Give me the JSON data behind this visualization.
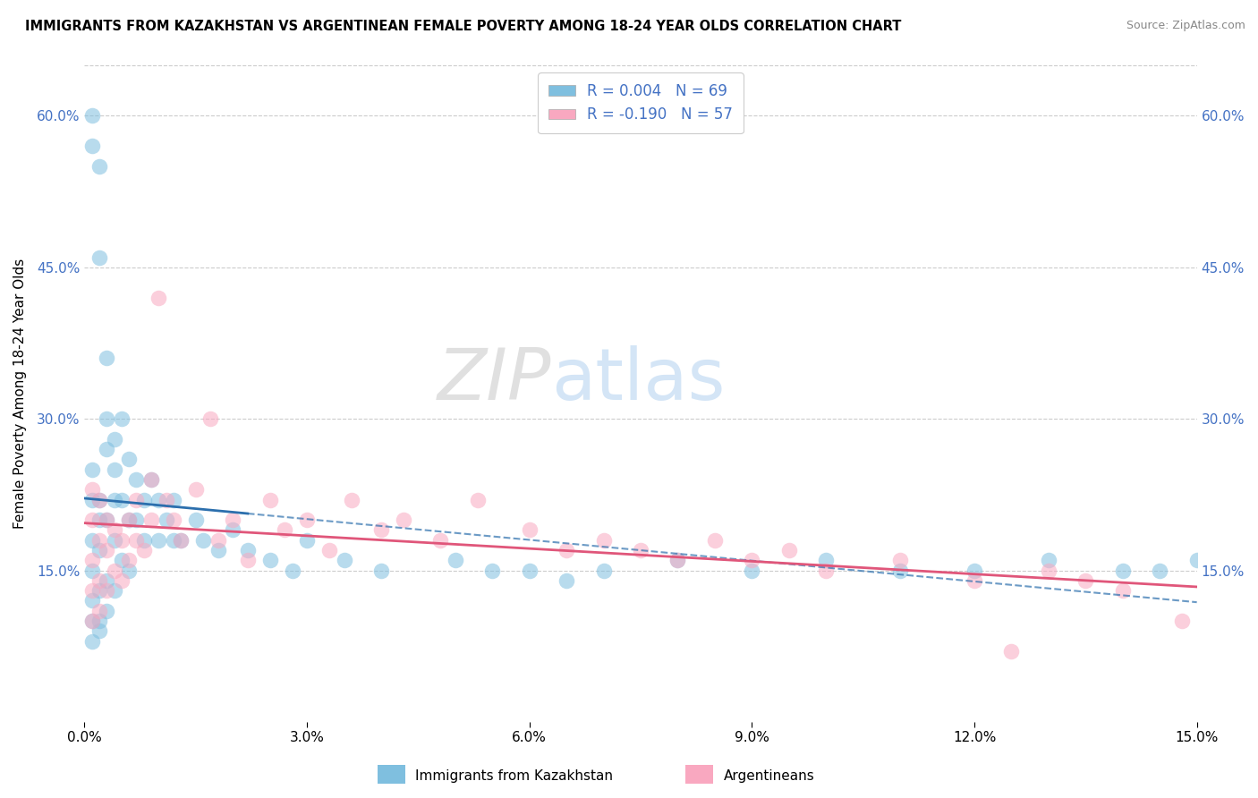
{
  "title": "IMMIGRANTS FROM KAZAKHSTAN VS ARGENTINEAN FEMALE POVERTY AMONG 18-24 YEAR OLDS CORRELATION CHART",
  "source": "Source: ZipAtlas.com",
  "ylabel": "Female Poverty Among 18-24 Year Olds",
  "xlim": [
    0.0,
    0.15
  ],
  "ylim": [
    0.0,
    0.65
  ],
  "color_blue": "#7fbfdf",
  "color_pink": "#f9a8c0",
  "line_blue": "#2c6fad",
  "line_pink": "#e0567a",
  "watermark_zip": "ZIP",
  "watermark_atlas": "atlas",
  "background": "#ffffff",
  "grid_color": "#cccccc",
  "kazakhstan_x": [
    0.001,
    0.001,
    0.001,
    0.001,
    0.001,
    0.001,
    0.001,
    0.001,
    0.001,
    0.002,
    0.002,
    0.002,
    0.002,
    0.002,
    0.002,
    0.002,
    0.002,
    0.003,
    0.003,
    0.003,
    0.003,
    0.003,
    0.003,
    0.004,
    0.004,
    0.004,
    0.004,
    0.004,
    0.005,
    0.005,
    0.005,
    0.006,
    0.006,
    0.006,
    0.007,
    0.007,
    0.008,
    0.008,
    0.009,
    0.01,
    0.01,
    0.011,
    0.012,
    0.012,
    0.013,
    0.015,
    0.016,
    0.018,
    0.02,
    0.022,
    0.025,
    0.028,
    0.03,
    0.035,
    0.04,
    0.05,
    0.055,
    0.06,
    0.065,
    0.07,
    0.08,
    0.09,
    0.1,
    0.11,
    0.12,
    0.13,
    0.14,
    0.145,
    0.15
  ],
  "kazakhstan_y": [
    0.57,
    0.6,
    0.22,
    0.18,
    0.15,
    0.12,
    0.1,
    0.08,
    0.25,
    0.55,
    0.46,
    0.2,
    0.17,
    0.13,
    0.1,
    0.09,
    0.22,
    0.36,
    0.3,
    0.27,
    0.2,
    0.14,
    0.11,
    0.28,
    0.25,
    0.22,
    0.18,
    0.13,
    0.3,
    0.22,
    0.16,
    0.26,
    0.2,
    0.15,
    0.24,
    0.2,
    0.22,
    0.18,
    0.24,
    0.22,
    0.18,
    0.2,
    0.22,
    0.18,
    0.18,
    0.2,
    0.18,
    0.17,
    0.19,
    0.17,
    0.16,
    0.15,
    0.18,
    0.16,
    0.15,
    0.16,
    0.15,
    0.15,
    0.14,
    0.15,
    0.16,
    0.15,
    0.16,
    0.15,
    0.15,
    0.16,
    0.15,
    0.15,
    0.16
  ],
  "argentina_x": [
    0.001,
    0.001,
    0.001,
    0.001,
    0.001,
    0.002,
    0.002,
    0.002,
    0.002,
    0.003,
    0.003,
    0.003,
    0.004,
    0.004,
    0.005,
    0.005,
    0.006,
    0.006,
    0.007,
    0.007,
    0.008,
    0.009,
    0.009,
    0.01,
    0.011,
    0.012,
    0.013,
    0.015,
    0.017,
    0.018,
    0.02,
    0.022,
    0.025,
    0.027,
    0.03,
    0.033,
    0.036,
    0.04,
    0.043,
    0.048,
    0.053,
    0.06,
    0.065,
    0.07,
    0.075,
    0.08,
    0.085,
    0.09,
    0.095,
    0.1,
    0.11,
    0.12,
    0.125,
    0.13,
    0.135,
    0.14,
    0.148
  ],
  "argentina_y": [
    0.23,
    0.2,
    0.16,
    0.13,
    0.1,
    0.22,
    0.18,
    0.14,
    0.11,
    0.2,
    0.17,
    0.13,
    0.19,
    0.15,
    0.18,
    0.14,
    0.2,
    0.16,
    0.22,
    0.18,
    0.17,
    0.24,
    0.2,
    0.42,
    0.22,
    0.2,
    0.18,
    0.23,
    0.3,
    0.18,
    0.2,
    0.16,
    0.22,
    0.19,
    0.2,
    0.17,
    0.22,
    0.19,
    0.2,
    0.18,
    0.22,
    0.19,
    0.17,
    0.18,
    0.17,
    0.16,
    0.18,
    0.16,
    0.17,
    0.15,
    0.16,
    0.14,
    0.07,
    0.15,
    0.14,
    0.13,
    0.1
  ]
}
